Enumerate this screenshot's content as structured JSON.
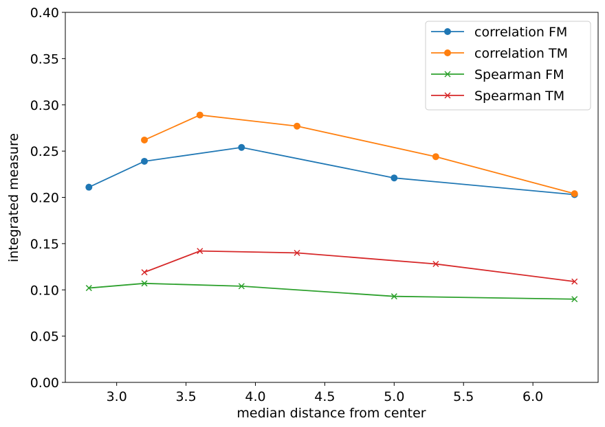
{
  "chart_data": {
    "type": "line",
    "xlabel": "median distance from center",
    "ylabel": "integrated measure",
    "xlim": [
      2.63,
      6.47
    ],
    "ylim": [
      0.0,
      0.4
    ],
    "xticks": [
      "3.0",
      "3.5",
      "4.0",
      "4.5",
      "5.0",
      "5.5",
      "6.0"
    ],
    "yticks": [
      "0.00",
      "0.05",
      "0.10",
      "0.15",
      "0.20",
      "0.25",
      "0.30",
      "0.35",
      "0.40"
    ],
    "grid": false,
    "legend_position": "top-right",
    "series": [
      {
        "name": "correlation FM",
        "color": "#1f77b4",
        "marker": "circle",
        "x": [
          2.8,
          3.2,
          3.9,
          5.0,
          6.3
        ],
        "y": [
          0.211,
          0.239,
          0.254,
          0.221,
          0.203
        ]
      },
      {
        "name": "correlation TM",
        "color": "#ff7f0e",
        "marker": "circle",
        "x": [
          3.2,
          3.6,
          4.3,
          5.3,
          6.3
        ],
        "y": [
          0.262,
          0.289,
          0.277,
          0.244,
          0.204
        ]
      },
      {
        "name": "Spearman FM",
        "color": "#2ca02c",
        "marker": "x",
        "x": [
          2.8,
          3.2,
          3.9,
          5.0,
          6.3
        ],
        "y": [
          0.102,
          0.107,
          0.104,
          0.093,
          0.09
        ]
      },
      {
        "name": "Spearman TM",
        "color": "#d62728",
        "marker": "x",
        "x": [
          3.2,
          3.6,
          4.3,
          5.3,
          6.3
        ],
        "y": [
          0.119,
          0.142,
          0.14,
          0.128,
          0.109
        ]
      }
    ]
  }
}
